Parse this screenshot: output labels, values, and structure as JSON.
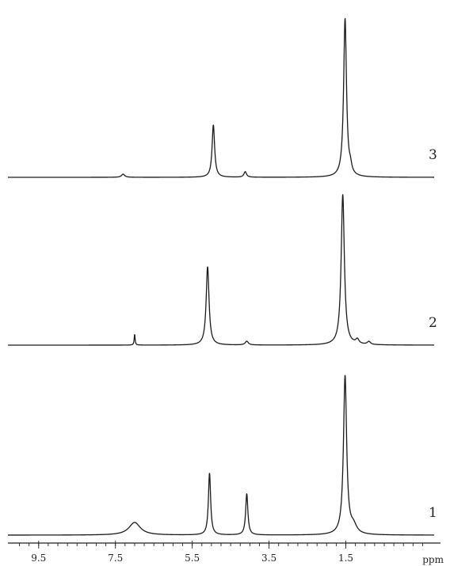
{
  "chart_data": {
    "type": "line",
    "title": "",
    "xlabel": "ppm",
    "ylabel": "",
    "x_reversed": true,
    "xlim": [
      10.3,
      -0.8
    ],
    "xticks": [
      {
        "value": 9.5,
        "label": "9.5"
      },
      {
        "value": 7.5,
        "label": "7.5"
      },
      {
        "value": 5.5,
        "label": "5.5"
      },
      {
        "value": 3.5,
        "label": "3.5"
      },
      {
        "value": 1.5,
        "label": "1.5"
      }
    ],
    "grid": false,
    "legend": "none",
    "series": [
      {
        "label": "3",
        "peaks": [
          {
            "ppm": 7.3,
            "height": 0.02,
            "width": 0.05
          },
          {
            "ppm": 4.95,
            "height": 0.33,
            "width": 0.04
          },
          {
            "ppm": 4.12,
            "height": 0.035,
            "width": 0.04
          },
          {
            "ppm": 1.52,
            "height": 1.0,
            "width": 0.045
          },
          {
            "ppm": 1.38,
            "height": 0.04,
            "width": 0.04
          }
        ]
      },
      {
        "label": "2",
        "peaks": [
          {
            "ppm": 7.0,
            "height": 0.07,
            "width": 0.015
          },
          {
            "ppm": 5.1,
            "height": 0.52,
            "width": 0.045
          },
          {
            "ppm": 4.08,
            "height": 0.025,
            "width": 0.05
          },
          {
            "ppm": 1.58,
            "height": 1.0,
            "width": 0.05
          },
          {
            "ppm": 1.2,
            "height": 0.03,
            "width": 0.05
          },
          {
            "ppm": 0.9,
            "height": 0.02,
            "width": 0.05
          }
        ]
      },
      {
        "label": "1",
        "peaks": [
          {
            "ppm": 7.0,
            "height": 0.08,
            "width": 0.18
          },
          {
            "ppm": 5.05,
            "height": 0.39,
            "width": 0.035
          },
          {
            "ppm": 4.08,
            "height": 0.26,
            "width": 0.035
          },
          {
            "ppm": 1.52,
            "height": 1.0,
            "width": 0.05
          },
          {
            "ppm": 1.3,
            "height": 0.05,
            "width": 0.1
          }
        ]
      }
    ]
  }
}
